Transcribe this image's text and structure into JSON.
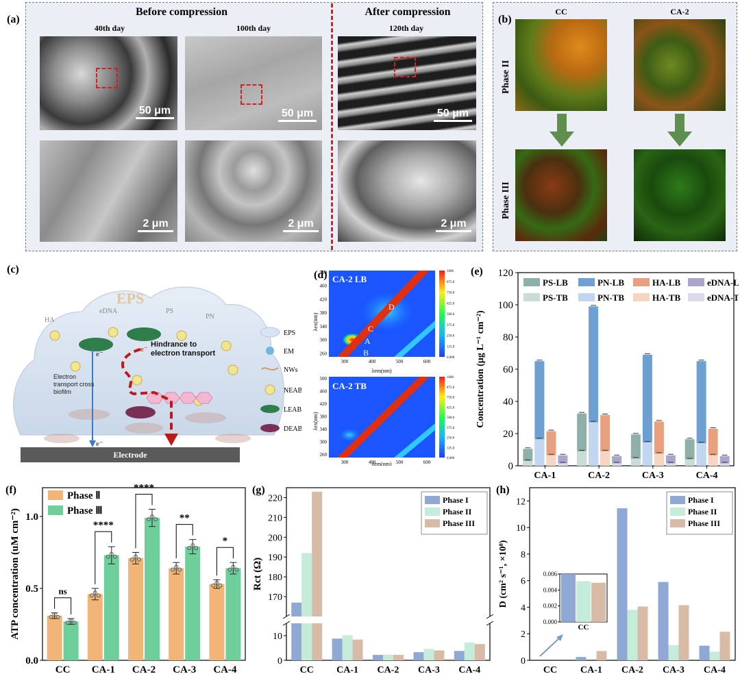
{
  "panels": {
    "a": {
      "label": "(a)",
      "before_title": "Before compression",
      "after_title": "After compression",
      "days": [
        "40th day",
        "100th day",
        "120th day"
      ],
      "scale_top": "50 μm",
      "scale_bottom": "2 μm"
    },
    "b": {
      "label": "(b)",
      "columns": [
        "CC",
        "CA-2"
      ],
      "rows": [
        "Phase II",
        "Phase III"
      ]
    },
    "c": {
      "label": "(c)",
      "eps_title": "EPS",
      "inside_labels": [
        "HA",
        "eDNA",
        "PS",
        "PN"
      ],
      "electron": "e⁻",
      "hindrance": "Hindrance to electron transport",
      "cross": "Electron transport cross biofilm",
      "electrode": "Electrode",
      "legend": [
        "EPS",
        "EM",
        "NWs",
        "NEAB",
        "LEAB",
        "DEAB"
      ]
    },
    "d": {
      "label": "(d)",
      "top_title": "CA-2 LB",
      "bottom_title": "CA-2 TB",
      "peaks": [
        "A",
        "B",
        "C",
        "D"
      ],
      "ylabel": "λex(nm)",
      "xlabel": "λem(nm)",
      "yticks": [
        "500",
        "460",
        "420",
        "380",
        "340",
        "300",
        "260"
      ],
      "xticks": [
        "300",
        "400",
        "500",
        "600"
      ],
      "cbar_ticks": [
        "1000",
        "875.0",
        "750.0",
        "625.0",
        "500.0",
        "375.0",
        "250.0",
        "125.0",
        "0.000"
      ]
    }
  },
  "chart_data": [
    {
      "id": "e",
      "label": "(e)",
      "type": "bar",
      "ylabel": "Concentration (μg L⁻¹ cm⁻²)",
      "ylim": [
        0,
        120
      ],
      "yticks": [
        "0",
        "20",
        "40",
        "60",
        "80",
        "100",
        "120"
      ],
      "categories": [
        "CA-1",
        "CA-2",
        "CA-3",
        "CA-4"
      ],
      "series": [
        {
          "name": "PS-LB",
          "color": "#8fb0a9",
          "values": [
            10.5,
            32.5,
            19.5,
            16.5
          ]
        },
        {
          "name": "PS-TB",
          "color": "#c9ddd6",
          "values": [
            3,
            9,
            4.5,
            4
          ]
        },
        {
          "name": "PN-LB",
          "color": "#6e9fd2",
          "values": [
            65,
            99,
            69,
            65
          ]
        },
        {
          "name": "PN-TB",
          "color": "#c2d7ef",
          "values": [
            16.5,
            27,
            14.5,
            14
          ]
        },
        {
          "name": "HA-LB",
          "color": "#e8a07e",
          "values": [
            21.5,
            31.5,
            27.5,
            23
          ]
        },
        {
          "name": "HA-TB",
          "color": "#f6d5c3",
          "values": [
            6.5,
            9,
            7.5,
            6.5
          ]
        },
        {
          "name": "eDNA-LB",
          "color": "#a9a6cd",
          "values": [
            6.5,
            6,
            6.5,
            6
          ]
        },
        {
          "name": "eDNA-TB",
          "color": "#dcdaec",
          "values": [
            1.5,
            1.5,
            1.5,
            1.5
          ]
        }
      ]
    },
    {
      "id": "f",
      "label": "(f)",
      "type": "bar",
      "ylabel": "ATP concentration (uM cm⁻²)",
      "ylim": [
        0,
        1.2
      ],
      "yticks": [
        "0.0",
        "0.5",
        "1.0"
      ],
      "categories": [
        "CC",
        "CA-1",
        "CA-2",
        "CA-3",
        "CA-4"
      ],
      "series": [
        {
          "name": "Phase Ⅱ",
          "color": "#f0b577",
          "values": [
            0.31,
            0.46,
            0.71,
            0.64,
            0.53
          ],
          "err": [
            0.02,
            0.04,
            0.04,
            0.04,
            0.03
          ]
        },
        {
          "name": "Phase Ⅲ",
          "color": "#6fcf9b",
          "values": [
            0.27,
            0.73,
            0.99,
            0.79,
            0.64
          ],
          "err": [
            0.02,
            0.06,
            0.06,
            0.05,
            0.04
          ]
        }
      ],
      "significance": [
        "ns",
        "****",
        "****",
        "**",
        "*"
      ]
    },
    {
      "id": "g",
      "label": "(g)",
      "type": "bar",
      "ylabel": "Rct (Ω)",
      "categories": [
        "CC",
        "CA-1",
        "CA-2",
        "CA-3",
        "CA-4"
      ],
      "yticks_top": [
        "170",
        "180",
        "190",
        "200",
        "210",
        "220"
      ],
      "yticks_bottom": [
        "0",
        "10"
      ],
      "series": [
        {
          "name": "Phase I",
          "color": "#8fa9d4",
          "values": [
            167,
            8.8,
            2.2,
            3.3,
            3.8
          ]
        },
        {
          "name": "Phase II",
          "color": "#c5ecd8",
          "values": [
            192,
            10.2,
            2.3,
            4.6,
            7.2
          ]
        },
        {
          "name": "Phase III",
          "color": "#d7bba6",
          "values": [
            223,
            8.4,
            2.2,
            4.0,
            6.6
          ]
        }
      ]
    },
    {
      "id": "h",
      "label": "(h)",
      "type": "bar",
      "ylabel": "D (cm² s⁻¹, ×10⁸)",
      "ylim": [
        0,
        13
      ],
      "yticks": [
        "0",
        "2",
        "4",
        "6",
        "8",
        "10",
        "12"
      ],
      "categories": [
        "CC",
        "CA-1",
        "CA-2",
        "CA-3",
        "CA-4"
      ],
      "series": [
        {
          "name": "Phase I",
          "color": "#8fa9d4",
          "values": [
            0.006,
            0.25,
            11.45,
            5.9,
            1.1
          ]
        },
        {
          "name": "Phase II",
          "color": "#c5ecd8",
          "values": [
            0.0051,
            0.0,
            3.8,
            1.15,
            0.65
          ]
        },
        {
          "name": "Phase III",
          "color": "#d7bba6",
          "values": [
            0.0049,
            0.7,
            4.05,
            4.15,
            2.15
          ]
        }
      ],
      "inset": {
        "category": "CC",
        "ylim": [
          0,
          0.006
        ],
        "yticks": [
          "0.000",
          "0.002",
          "0.004",
          "0.006"
        ]
      }
    }
  ]
}
